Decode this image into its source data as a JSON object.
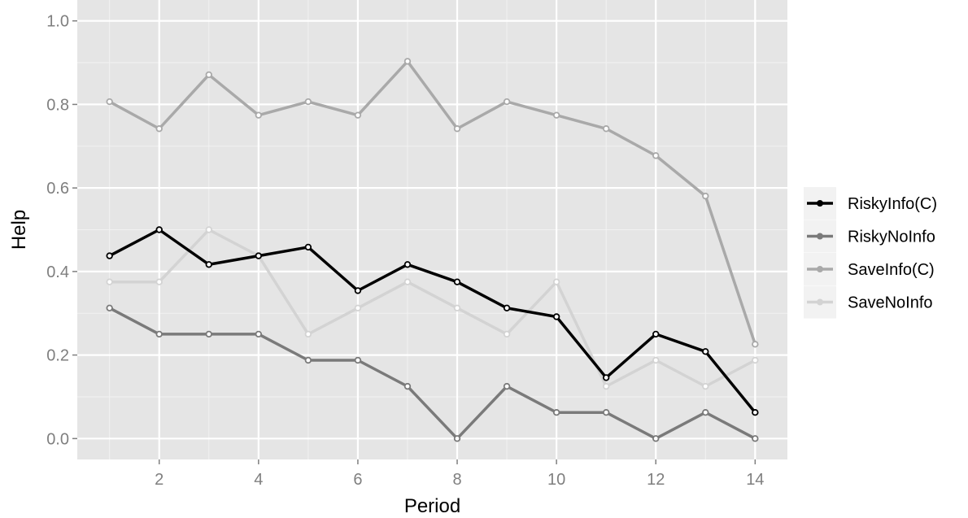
{
  "chart_data": {
    "type": "line",
    "xlabel": "Period",
    "ylabel": "Help",
    "xlim": [
      0.35,
      14.65
    ],
    "ylim": [
      -0.05,
      1.05
    ],
    "x_ticks": [
      2,
      4,
      6,
      8,
      10,
      12,
      14
    ],
    "x_tick_labels": [
      "2",
      "4",
      "6",
      "8",
      "10",
      "12",
      "14"
    ],
    "y_ticks": [
      0.0,
      0.2,
      0.4,
      0.6,
      0.8,
      1.0
    ],
    "y_tick_labels": [
      "0.0",
      "0.2",
      "0.4",
      "0.6",
      "0.8",
      "1.0"
    ],
    "grid": true,
    "legend_position": "right",
    "x": [
      1,
      2,
      3,
      4,
      5,
      6,
      7,
      8,
      9,
      10,
      11,
      12,
      13,
      14
    ],
    "series": [
      {
        "name": "RiskyInfo(C)",
        "color": "#000000",
        "values": [
          0.4375,
          0.5,
          0.4167,
          0.4375,
          0.4583,
          0.3542,
          0.4167,
          0.375,
          0.3125,
          0.2917,
          0.1458,
          0.25,
          0.2083,
          0.0625
        ]
      },
      {
        "name": "RiskyNoInfo",
        "color": "#7a7a7a",
        "values": [
          0.3125,
          0.25,
          0.25,
          0.25,
          0.1875,
          0.1875,
          0.125,
          0.0,
          0.125,
          0.0625,
          0.0625,
          0.0,
          0.0625,
          0.0
        ]
      },
      {
        "name": "SaveInfo(C)",
        "color": "#a9a9a9",
        "values": [
          0.8065,
          0.7419,
          0.871,
          0.7742,
          0.8065,
          0.7742,
          0.9032,
          0.7419,
          0.8065,
          0.7742,
          0.7419,
          0.6774,
          0.5806,
          0.2258
        ]
      },
      {
        "name": "SaveNoInfo",
        "color": "#d3d3d3",
        "values": [
          0.375,
          0.375,
          0.5,
          0.4375,
          0.25,
          0.3125,
          0.375,
          0.3125,
          0.25,
          0.375,
          0.125,
          0.1875,
          0.125,
          0.1875
        ]
      }
    ]
  },
  "colors": {
    "panel_background": "#e5e5e5",
    "grid_major": "#ffffff",
    "grid_minor": "#f2f2f2",
    "tick_text": "#7f7f7f",
    "legend_key_background": "#f2f2f2"
  }
}
